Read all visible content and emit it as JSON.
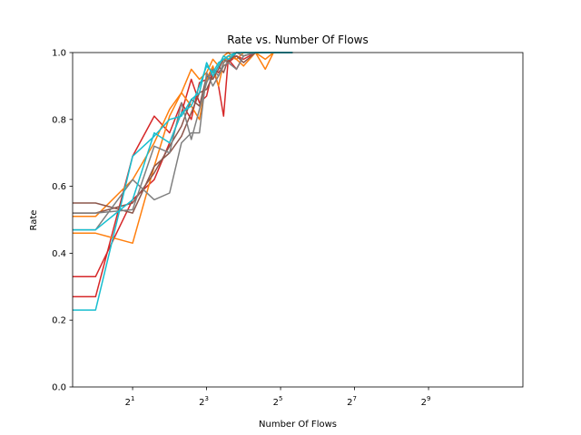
{
  "chart_data": {
    "type": "line",
    "title": "Rate vs. Number Of Flows",
    "xlabel": "Number Of Flows",
    "ylabel": "Rate",
    "xscale": "log2",
    "xlim": [
      0.65,
      3000
    ],
    "ylim": [
      0.0,
      1.0
    ],
    "grid": false,
    "legend": "none",
    "x_ticks": [
      {
        "value": 2,
        "base": "2",
        "exp": "1"
      },
      {
        "value": 8,
        "base": "2",
        "exp": "3"
      },
      {
        "value": 32,
        "base": "2",
        "exp": "5"
      },
      {
        "value": 128,
        "base": "2",
        "exp": "7"
      },
      {
        "value": 512,
        "base": "2",
        "exp": "9"
      }
    ],
    "y_ticks": [
      "0.0",
      "0.2",
      "0.4",
      "0.6",
      "0.8",
      "1.0"
    ],
    "series": [
      {
        "color": "#d62728",
        "x": [
          0.65,
          1,
          2,
          3,
          4,
          5,
          6,
          7,
          8,
          9,
          10,
          11,
          12,
          14,
          16,
          20,
          24,
          28,
          32,
          40
        ],
        "y": [
          0.33,
          0.33,
          0.56,
          0.62,
          0.73,
          0.82,
          0.92,
          0.85,
          0.87,
          0.95,
          0.9,
          0.81,
          0.98,
          0.95,
          0.99,
          1.0,
          1.0,
          1.0,
          1.0,
          1.0
        ]
      },
      {
        "color": "#d62728",
        "x": [
          0.65,
          1,
          2,
          3,
          4,
          5,
          6,
          7,
          8,
          9,
          10,
          11,
          12,
          14,
          16,
          20,
          24,
          28,
          32,
          40
        ],
        "y": [
          0.27,
          0.27,
          0.69,
          0.81,
          0.76,
          0.85,
          0.8,
          0.91,
          0.92,
          0.95,
          0.94,
          0.96,
          0.97,
          0.99,
          0.98,
          1.0,
          1.0,
          1.0,
          1.0,
          1.0
        ]
      },
      {
        "color": "#ff7f0e",
        "x": [
          0.65,
          1,
          2,
          3,
          4,
          5,
          6,
          7,
          8,
          9,
          10,
          11,
          12,
          14,
          16,
          20,
          24,
          28,
          32,
          40
        ],
        "y": [
          0.46,
          0.46,
          0.43,
          0.66,
          0.81,
          0.88,
          0.84,
          0.8,
          0.92,
          0.96,
          0.9,
          0.97,
          0.99,
          0.98,
          0.96,
          1.0,
          0.95,
          1.0,
          1.0,
          1.0
        ]
      },
      {
        "color": "#ff7f0e",
        "x": [
          0.65,
          1,
          2,
          3,
          4,
          5,
          6,
          7,
          8,
          9,
          10,
          11,
          12,
          14,
          16,
          20,
          24,
          28,
          32,
          40
        ],
        "y": [
          0.51,
          0.51,
          0.62,
          0.73,
          0.83,
          0.88,
          0.95,
          0.92,
          0.94,
          0.98,
          0.96,
          0.99,
          1.0,
          0.98,
          1.0,
          1.0,
          0.98,
          1.0,
          1.0,
          1.0
        ]
      },
      {
        "color": "#8c564b",
        "x": [
          0.65,
          1,
          2,
          3,
          4,
          5,
          6,
          7,
          8,
          9,
          10,
          11,
          12,
          14,
          16,
          20,
          24,
          28,
          32,
          40
        ],
        "y": [
          0.55,
          0.55,
          0.52,
          0.66,
          0.7,
          0.75,
          0.82,
          0.88,
          0.89,
          0.93,
          0.96,
          0.94,
          0.98,
          0.99,
          0.97,
          1.0,
          1.0,
          1.0,
          1.0,
          1.0
        ]
      },
      {
        "color": "#8c564b",
        "x": [
          0.65,
          1,
          2,
          3,
          4,
          5,
          6,
          7,
          8,
          9,
          10,
          11,
          12,
          14,
          16,
          20,
          24,
          28,
          32,
          40
        ],
        "y": [
          0.52,
          0.52,
          0.55,
          0.64,
          0.72,
          0.78,
          0.86,
          0.84,
          0.93,
          0.92,
          0.95,
          0.98,
          0.97,
          1.0,
          0.99,
          1.0,
          1.0,
          1.0,
          1.0,
          1.0
        ]
      },
      {
        "color": "#7f7f7f",
        "x": [
          0.65,
          1,
          2,
          3,
          4,
          5,
          6,
          7,
          8,
          9,
          10,
          11,
          12,
          14,
          16,
          20,
          24,
          28,
          32,
          40
        ],
        "y": [
          0.47,
          0.47,
          0.62,
          0.56,
          0.58,
          0.73,
          0.76,
          0.76,
          0.94,
          0.9,
          0.93,
          0.96,
          0.97,
          0.95,
          0.99,
          1.0,
          1.0,
          1.0,
          1.0,
          1.0
        ]
      },
      {
        "color": "#7f7f7f",
        "x": [
          0.65,
          1,
          2,
          3,
          4,
          5,
          6,
          7,
          8,
          9,
          10,
          11,
          12,
          14,
          16,
          20,
          24,
          28,
          32,
          40
        ],
        "y": [
          0.52,
          0.52,
          0.53,
          0.72,
          0.7,
          0.85,
          0.74,
          0.83,
          0.91,
          0.95,
          0.93,
          0.97,
          0.98,
          1.0,
          0.99,
          1.0,
          1.0,
          1.0,
          1.0,
          1.0
        ]
      },
      {
        "color": "#17becf",
        "x": [
          0.65,
          1,
          2,
          3,
          4,
          5,
          6,
          7,
          8,
          9,
          10,
          11,
          12,
          14,
          16,
          20,
          24,
          28,
          32,
          40
        ],
        "y": [
          0.23,
          0.23,
          0.69,
          0.75,
          0.8,
          0.81,
          0.86,
          0.88,
          0.97,
          0.93,
          0.96,
          0.99,
          0.98,
          1.0,
          1.0,
          1.0,
          1.0,
          1.0,
          1.0,
          1.0
        ]
      },
      {
        "color": "#17becf",
        "x": [
          0.65,
          1,
          2,
          3,
          4,
          5,
          6,
          7,
          8,
          9,
          10,
          11,
          12,
          14,
          16,
          20,
          24,
          28,
          32,
          40
        ],
        "y": [
          0.47,
          0.47,
          0.56,
          0.76,
          0.73,
          0.82,
          0.84,
          0.9,
          0.96,
          0.94,
          0.97,
          0.98,
          0.99,
          1.0,
          1.0,
          1.0,
          1.0,
          1.0,
          1.0,
          1.0
        ]
      }
    ]
  }
}
